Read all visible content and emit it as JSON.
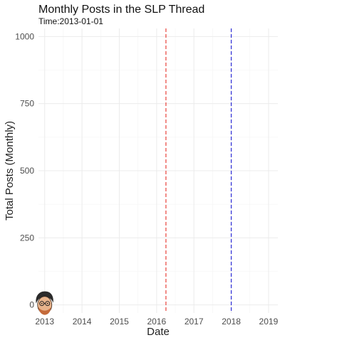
{
  "chart_data": {
    "type": "line",
    "title": "Monthly Posts in the SLP Thread",
    "subtitle": "Time:2013-01-01",
    "xlabel": "Date",
    "ylabel": "Total Posts (Monthly)",
    "xlim": [
      "2012-11-01",
      "2019-04-01"
    ],
    "ylim": [
      -30,
      1030
    ],
    "x_ticks": [
      "2013",
      "2014",
      "2015",
      "2016",
      "2017",
      "2018",
      "2019"
    ],
    "y_ticks": [
      0,
      250,
      500,
      750,
      1000
    ],
    "grid": true,
    "series": [
      {
        "x": [
          "2013-01-01"
        ],
        "y": [
          0
        ]
      }
    ],
    "vlines": [
      {
        "x": "2016-04-01",
        "color": "#e8413a",
        "style": "dashed"
      },
      {
        "x": "2018-01-01",
        "color": "#2b2bd6",
        "style": "dashed"
      }
    ],
    "marker_icon": "cartoon-face-icon"
  }
}
